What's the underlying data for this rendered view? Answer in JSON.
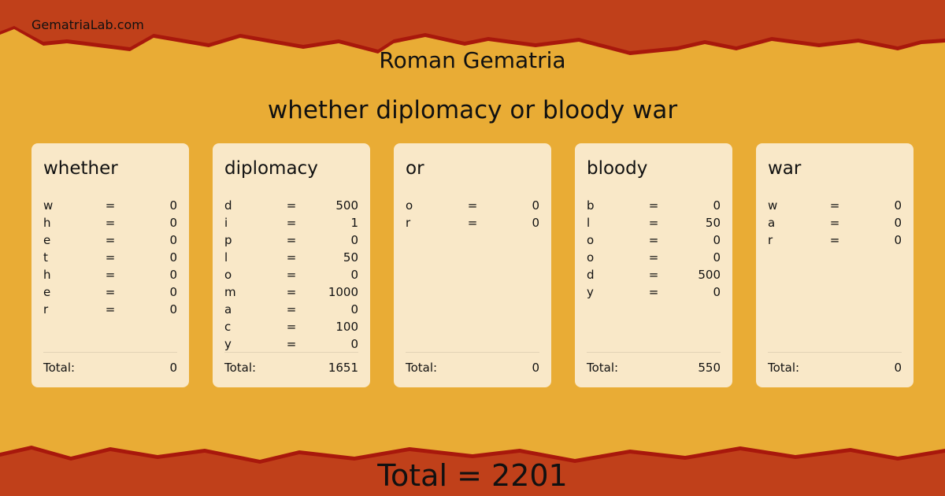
{
  "site": "GematriaLab.com",
  "title": "Roman Gematria",
  "phrase": "whether diplomacy or bloody war",
  "colors": {
    "background": "#e9ac35",
    "border": "#c0401a",
    "edge": "#a8180c",
    "card": "#f9e8c8"
  },
  "total_label": "Total:",
  "words": [
    {
      "word": "whether",
      "letters": [
        [
          "w",
          "0"
        ],
        [
          "h",
          "0"
        ],
        [
          "e",
          "0"
        ],
        [
          "t",
          "0"
        ],
        [
          "h",
          "0"
        ],
        [
          "e",
          "0"
        ],
        [
          "r",
          "0"
        ]
      ],
      "total": "0"
    },
    {
      "word": "diplomacy",
      "letters": [
        [
          "d",
          "500"
        ],
        [
          "i",
          "1"
        ],
        [
          "p",
          "0"
        ],
        [
          "l",
          "50"
        ],
        [
          "o",
          "0"
        ],
        [
          "m",
          "1000"
        ],
        [
          "a",
          "0"
        ],
        [
          "c",
          "100"
        ],
        [
          "y",
          "0"
        ]
      ],
      "total": "1651"
    },
    {
      "word": "or",
      "letters": [
        [
          "o",
          "0"
        ],
        [
          "r",
          "0"
        ]
      ],
      "total": "0"
    },
    {
      "word": "bloody",
      "letters": [
        [
          "b",
          "0"
        ],
        [
          "l",
          "50"
        ],
        [
          "o",
          "0"
        ],
        [
          "o",
          "0"
        ],
        [
          "d",
          "500"
        ],
        [
          "y",
          "0"
        ]
      ],
      "total": "550"
    },
    {
      "word": "war",
      "letters": [
        [
          "w",
          "0"
        ],
        [
          "a",
          "0"
        ],
        [
          "r",
          "0"
        ]
      ],
      "total": "0"
    }
  ],
  "grand_total": "Total = 2201"
}
